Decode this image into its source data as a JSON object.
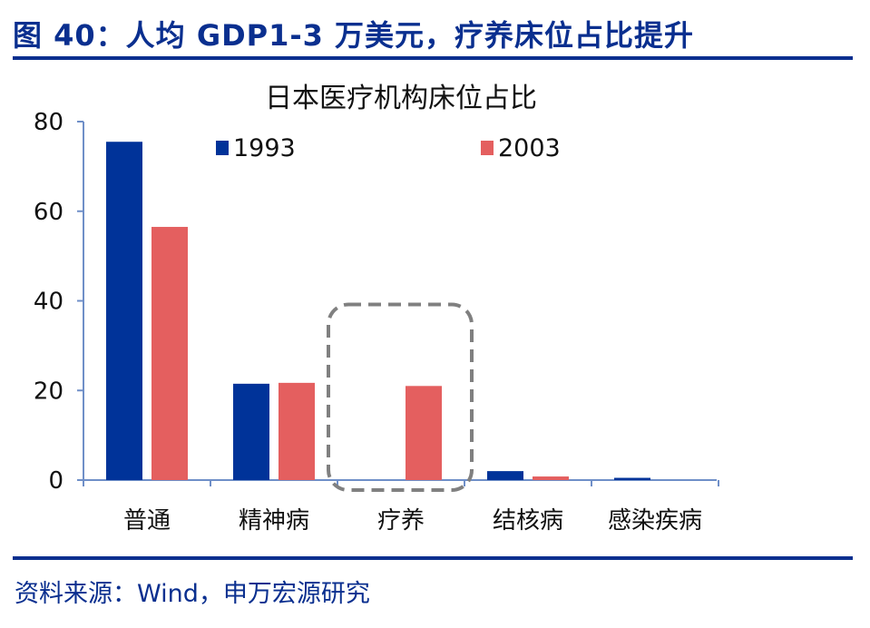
{
  "figure": {
    "title": "图 40：人均 GDP1-3 万美元，疗养床位占比提升",
    "source": "资料来源：Wind，申万宏源研究"
  },
  "colors": {
    "brand": "#0a2f8f",
    "series_1993": "#003399",
    "series_2003": "#e45f5f",
    "highlight_box": "#808080"
  },
  "chart_data": {
    "type": "bar",
    "title": "日本医疗机构床位占比",
    "xlabel": "",
    "ylabel": "",
    "ylim": [
      0,
      80
    ],
    "yticks": [
      0,
      20,
      40,
      60,
      80
    ],
    "categories": [
      "普通",
      "精神病",
      "疗养",
      "结核病",
      "感染疾病"
    ],
    "series": [
      {
        "name": "1993",
        "color": "#003399",
        "values": [
          75.5,
          21.5,
          0,
          2.0,
          0.5
        ]
      },
      {
        "name": "2003",
        "color": "#e45f5f",
        "values": [
          56.5,
          21.7,
          21.0,
          0.8,
          0
        ]
      }
    ],
    "legend": "top",
    "grid": false,
    "highlight_category": "疗养"
  }
}
